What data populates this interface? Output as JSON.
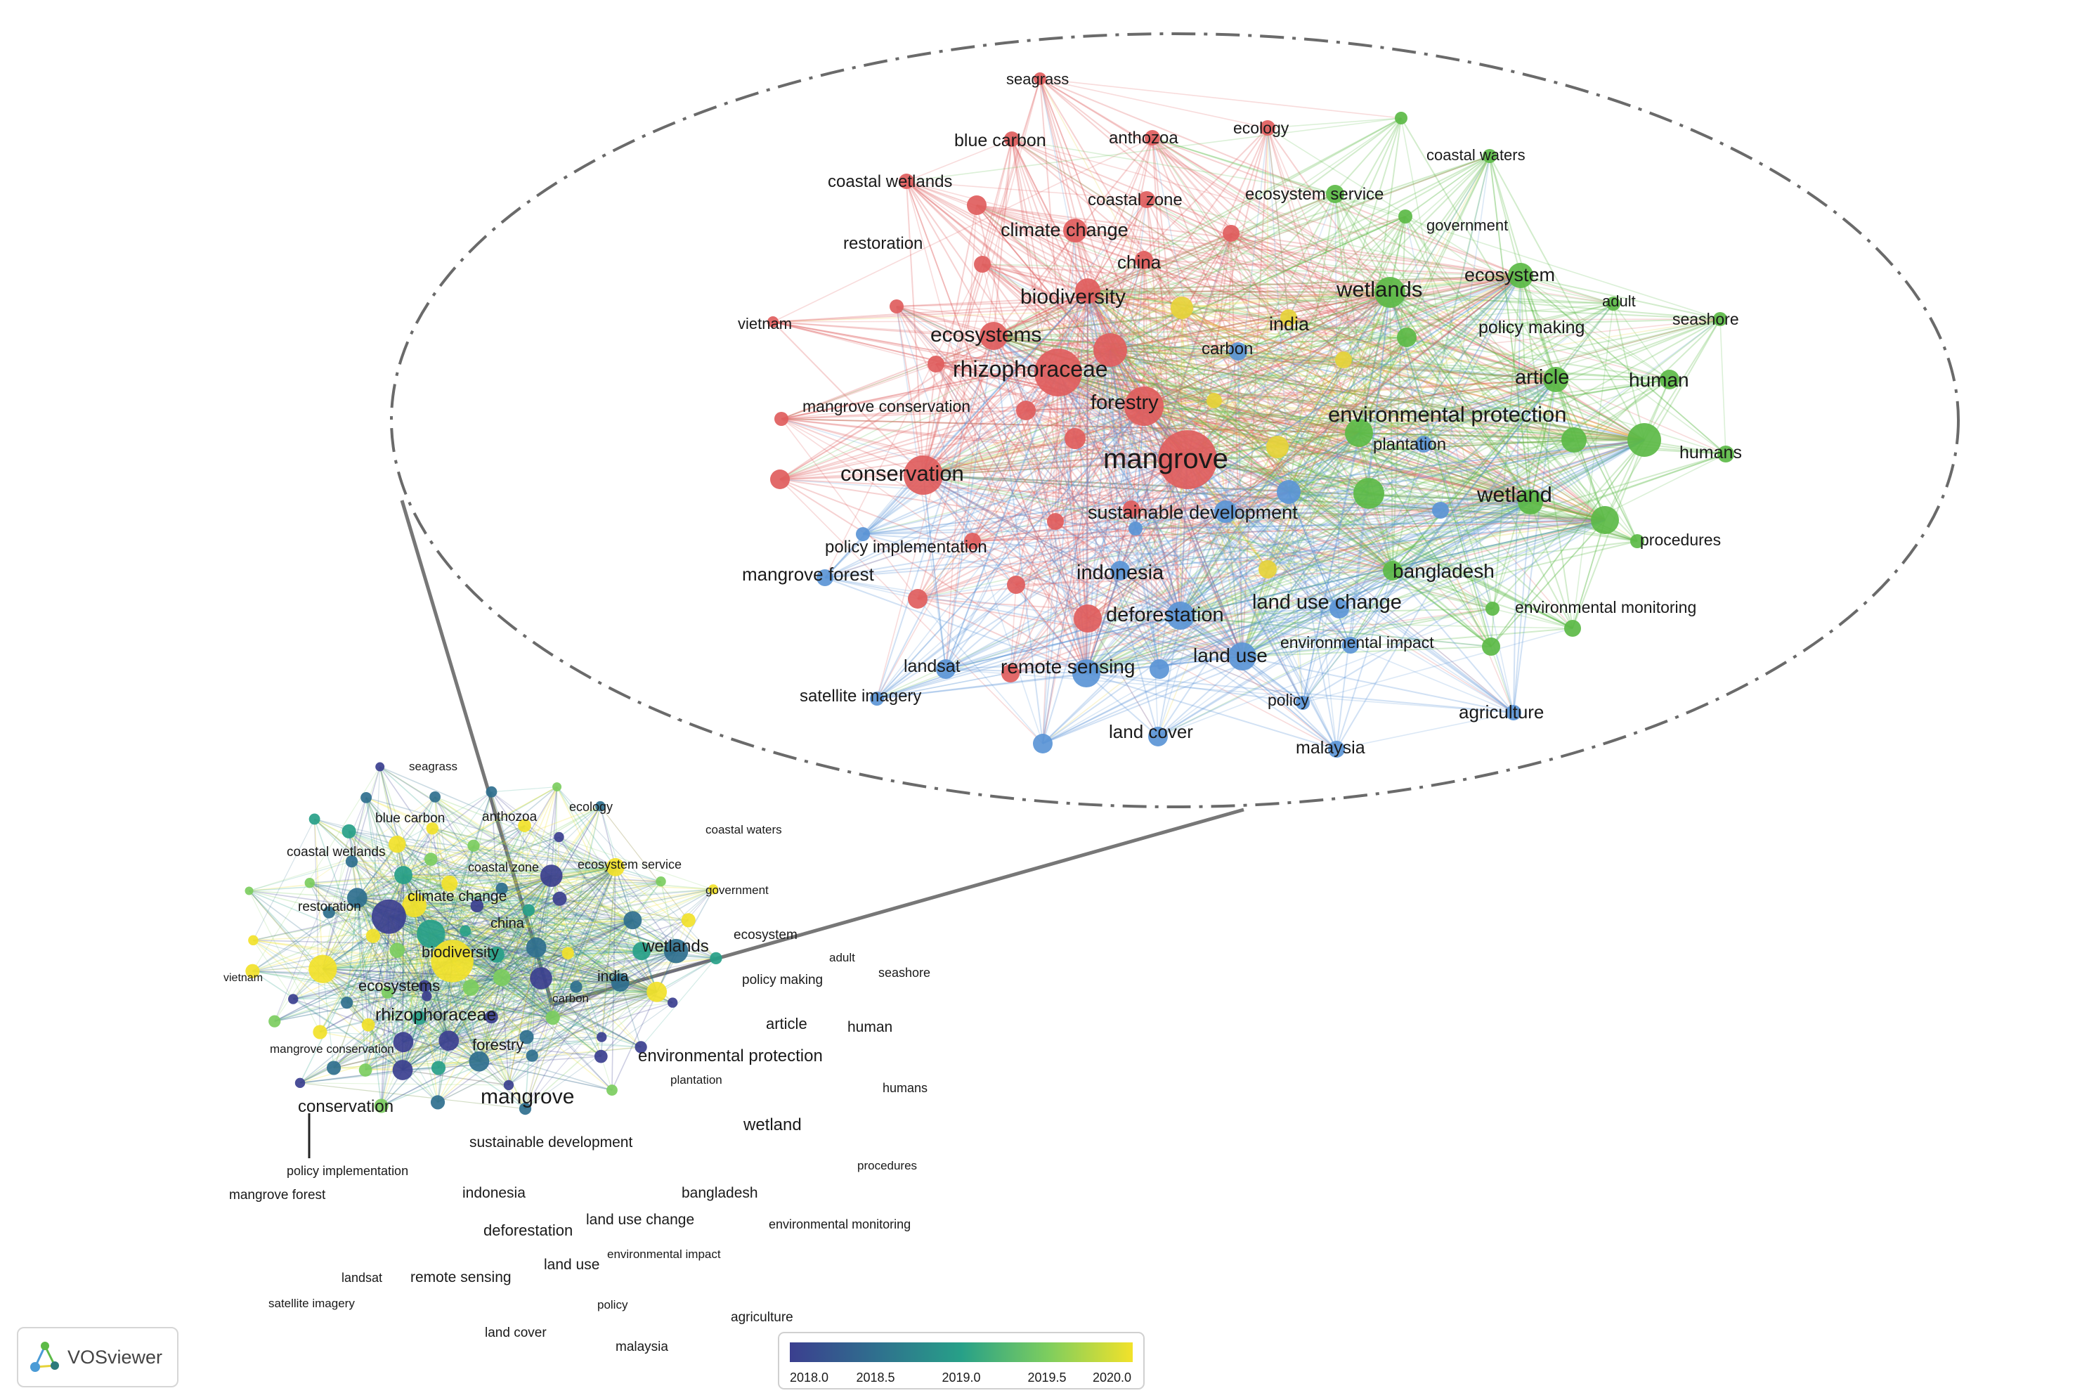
{
  "zoom_labels": {
    "seagrass": "seagrass",
    "blue_carbon": "blue carbon",
    "anthozoa": "anthozoa",
    "ecology": "ecology",
    "coastal_waters": "coastal waters",
    "coastal_wetlands": "coastal wetlands",
    "coastal_zone": "coastal zone",
    "ecosystem_service": "ecosystem service",
    "government": "government",
    "restoration": "restoration",
    "climate_change": "climate change",
    "china": "china",
    "biodiversity": "biodiversity",
    "wetlands": "wetlands",
    "ecosystem": "ecosystem",
    "adult": "adult",
    "seashore": "seashore",
    "vietnam": "vietnam",
    "india": "india",
    "policy_making": "policy making",
    "ecosystems": "ecosystems",
    "carbon": "carbon",
    "rhizophoraceae": "rhizophoraceae",
    "article": "article",
    "human": "human",
    "mangrove_conservation": "mangrove conservation",
    "forestry": "forestry",
    "environmental_protection": "environmental protection",
    "plantation": "plantation",
    "humans": "humans",
    "mangrove": "mangrove",
    "conservation": "conservation",
    "wetland": "wetland",
    "sustainable_development": "sustainable development",
    "procedures": "procedures",
    "policy_implementation": "policy implementation",
    "mangrove_forest": "mangrove forest",
    "indonesia": "indonesia",
    "bangladesh": "bangladesh",
    "land_use_change": "land use change",
    "deforestation": "deforestation",
    "environmental_monitoring": "environmental monitoring",
    "environmental_impact": "environmental impact",
    "landsat": "landsat",
    "remote_sensing": "remote sensing",
    "land_use": "land use",
    "satellite_imagery": "satellite imagery",
    "policy": "policy",
    "agriculture": "agriculture",
    "land_cover": "land cover",
    "malaysia": "malaysia"
  },
  "overview_labels": {
    "seagrass": "seagrass",
    "blue_carbon": "blue carbon",
    "anthozoa": "anthozoa",
    "ecology": "ecology",
    "coastal_waters": "coastal waters",
    "coastal_wetlands": "coastal wetlands",
    "coastal_zone": "coastal zone",
    "ecosystem_service": "ecosystem service",
    "government": "government",
    "restoration": "restoration",
    "climate_change": "climate change",
    "china": "china",
    "ecosystem": "ecosystem",
    "biodiversity": "biodiversity",
    "wetlands": "wetlands",
    "adult": "adult",
    "vietnam": "vietnam",
    "india": "india",
    "policy_making": "policy making",
    "seashore": "seashore",
    "ecosystems": "ecosystems",
    "carbon": "carbon",
    "rhizophoraceae": "rhizophoraceae",
    "article": "article",
    "human": "human",
    "mangrove_conservation": "mangrove conservation",
    "forestry": "forestry",
    "environmental_protection": "environmental protection",
    "plantation": "plantation",
    "humans": "humans",
    "conservation": "conservation",
    "mangrove": "mangrove",
    "wetland": "wetland",
    "sustainable_development": "sustainable development",
    "procedures": "procedures",
    "policy_implementation": "policy implementation",
    "mangrove_forest": "mangrove forest",
    "indonesia": "indonesia",
    "bangladesh": "bangladesh",
    "deforestation": "deforestation",
    "land_use_change": "land use change",
    "environmental_monitoring": "environmental monitoring",
    "environmental_impact": "environmental impact",
    "land_use": "land use",
    "landsat": "landsat",
    "remote_sensing": "remote sensing",
    "satellite_imagery": "satellite imagery",
    "policy": "policy",
    "agriculture": "agriculture",
    "land_cover": "land cover",
    "malaysia": "malaysia"
  },
  "colorbar": {
    "ticks": [
      "2018.0",
      "2018.5",
      "2019.0",
      "2019.5",
      "2020.0"
    ],
    "stops": [
      "#3b3f8f",
      "#2f6f8e",
      "#27a088",
      "#7ccd5f",
      "#f2e22a"
    ]
  },
  "clusters": {
    "red": "#e05d5d",
    "green": "#5cba47",
    "blue": "#5b95d6",
    "yellow": "#e6d33a"
  },
  "brand": {
    "name": "VOSviewer"
  }
}
